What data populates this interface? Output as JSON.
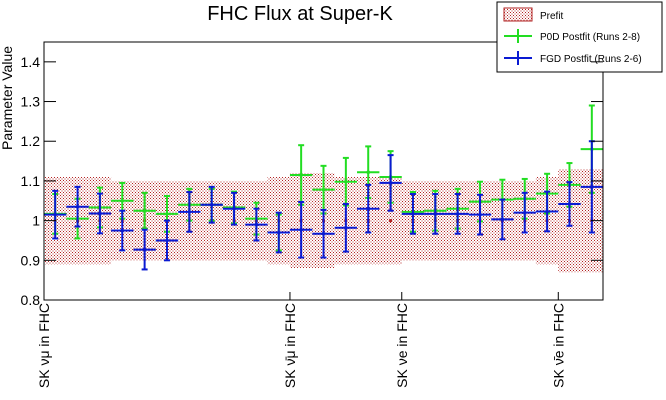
{
  "chart_data": {
    "type": "errorbar",
    "title": "FHC Flux at Super-K",
    "y_label": "Parameter Value",
    "categories": [
      "SK νμ in FHC",
      null,
      null,
      null,
      null,
      null,
      null,
      null,
      null,
      null,
      null,
      "SK ν̄μ in FHC",
      null,
      null,
      null,
      null,
      "SK νe in FHC",
      null,
      null,
      null,
      null,
      null,
      null,
      "SK ν̄e in FHC",
      null
    ],
    "ylim": [
      0.8,
      1.45
    ],
    "yticks": [
      0.8,
      0.9,
      1,
      1.1,
      1.2,
      1.3,
      1.4
    ],
    "legend": "top-right",
    "series": [
      {
        "name": "Prefit",
        "color": "#b22222",
        "style": "band",
        "values": [
          1,
          1,
          1,
          1,
          1,
          1,
          1,
          1,
          1,
          1,
          1,
          1,
          1,
          1,
          1,
          1,
          1,
          1,
          1,
          1,
          1,
          1,
          1,
          1,
          1
        ],
        "errors": [
          0.11,
          0.11,
          0.11,
          0.1,
          0.1,
          0.1,
          0.1,
          0.1,
          0.1,
          0.1,
          0.11,
          0.12,
          0.12,
          0.11,
          0.11,
          0.11,
          0.1,
          0.1,
          0.1,
          0.1,
          0.1,
          0.1,
          0.11,
          0.13,
          0.13
        ]
      },
      {
        "name": "P0D Postfit (Runs 2-8)",
        "color": "#22dd22",
        "style": "points",
        "values": [
          1.017,
          1.005,
          1.033,
          1.05,
          1.025,
          1.017,
          1.04,
          1.04,
          1.033,
          1.005,
          0.97,
          1.115,
          1.078,
          1.098,
          1.122,
          1.11,
          1.022,
          1.025,
          1.03,
          1.048,
          1.053,
          1.055,
          1.068,
          1.09,
          1.18
        ],
        "errors": [
          0.05,
          0.05,
          0.05,
          0.045,
          0.045,
          0.045,
          0.04,
          0.04,
          0.04,
          0.04,
          0.045,
          0.075,
          0.06,
          0.06,
          0.065,
          0.065,
          0.05,
          0.05,
          0.05,
          0.05,
          0.05,
          0.05,
          0.05,
          0.055,
          0.11
        ]
      },
      {
        "name": "FGD Postfit (Runs 2-6)",
        "color": "#0a1ad2",
        "style": "points",
        "values": [
          1.015,
          1.035,
          1.018,
          0.975,
          0.927,
          0.95,
          1.022,
          1.04,
          1.03,
          0.99,
          0.97,
          0.977,
          0.967,
          0.982,
          1.03,
          1.095,
          1.017,
          1.017,
          1.017,
          1.015,
          1.003,
          1.02,
          1.023,
          1.042,
          1.085
        ],
        "errors": [
          0.06,
          0.05,
          0.05,
          0.05,
          0.05,
          0.05,
          0.05,
          0.045,
          0.04,
          0.04,
          0.05,
          0.07,
          0.06,
          0.06,
          0.06,
          0.07,
          0.05,
          0.05,
          0.05,
          0.05,
          0.05,
          0.05,
          0.05,
          0.055,
          0.115
        ]
      }
    ]
  }
}
